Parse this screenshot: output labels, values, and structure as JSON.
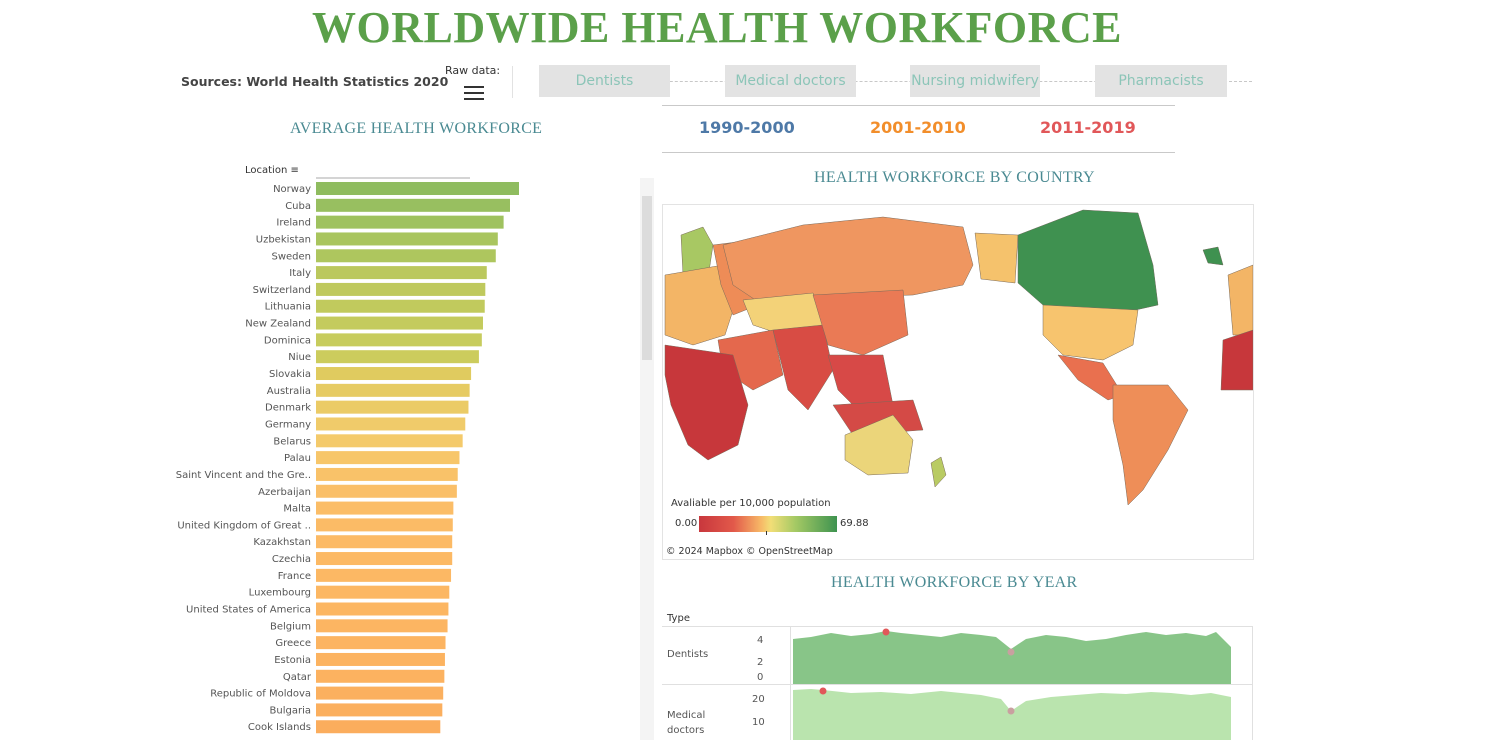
{
  "header": {
    "title": "WORLDWIDE HEALTH WORKFORCE",
    "sources": "Sources: World Health Statistics 2020",
    "raw_data_label": "Raw data:"
  },
  "tabs": [
    {
      "label": "Dentists"
    },
    {
      "label": "Medical doctors"
    },
    {
      "label": "Nursing midwifery"
    },
    {
      "label": "Pharmacists"
    }
  ],
  "periods": [
    {
      "label": "1990-2000",
      "color": "#4e79a7"
    },
    {
      "label": "2001-2010",
      "color": "#f28e2b"
    },
    {
      "label": "2011-2019",
      "color": "#e15759"
    }
  ],
  "sections": {
    "avg": "AVERAGE HEALTH WORKFORCE",
    "map": "HEALTH WORKFORCE BY COUNTRY",
    "year": "HEALTH WORKFORCE BY YEAR"
  },
  "bar_chart": {
    "column_header": "Location",
    "locations": [
      "Norway",
      "Cuba",
      "Ireland",
      "Uzbekistan",
      "Sweden",
      "Italy",
      "Switzerland",
      "Lithuania",
      "New Zealand",
      "Dominica",
      "Niue",
      "Slovakia",
      "Australia",
      "Denmark",
      "Germany",
      "Belarus",
      "Palau",
      "Saint Vincent and the Gre..",
      "Azerbaijan",
      "Malta",
      "United Kingdom of Great ..",
      "Kazakhstan",
      "Czechia",
      "France",
      "Luxembourg",
      "United States of America",
      "Belgium",
      "Greece",
      "Estonia",
      "Qatar",
      "Republic of Moldova",
      "Bulgaria",
      "Cook Islands"
    ],
    "values": [
      69.9,
      66.8,
      64.6,
      62.6,
      61.9,
      58.8,
      58.3,
      58.1,
      57.5,
      57.1,
      56.1,
      53.4,
      52.9,
      52.5,
      51.4,
      50.5,
      49.4,
      48.8,
      48.5,
      47.3,
      47.1,
      46.9,
      46.9,
      46.5,
      45.9,
      45.6,
      45.3,
      44.6,
      44.4,
      44.2,
      43.8,
      43.5,
      42.8
    ],
    "colors": [
      "#8fbc5f",
      "#98bf60",
      "#9fc25f",
      "#a9c55e",
      "#aec65e",
      "#bbc85d",
      "#bfc95d",
      "#c1ca5d",
      "#c4cb5d",
      "#c7cc5d",
      "#cccc5d",
      "#e0cb5f",
      "#e6cb63",
      "#ebcb66",
      "#f0cb6a",
      "#f4ca6b",
      "#f7c66a",
      "#f9c269",
      "#fabf68",
      "#fbbd67",
      "#fbbb66",
      "#fcba65",
      "#fcb964",
      "#fcb864",
      "#fcb763",
      "#fcb662",
      "#fcb562",
      "#fcb461",
      "#fcb360",
      "#fcb260",
      "#fbb05f",
      "#fbaf5e",
      "#fbad5d"
    ]
  },
  "map": {
    "legend_title": "Avaliable per 10,000 population",
    "legend_min": "0.00",
    "legend_max": "69.88",
    "attribution": "© 2024 Mapbox  © OpenStreetMap"
  },
  "year_chart": {
    "type_label": "Type",
    "panels": [
      {
        "label": "Dentists",
        "ticks": [
          "4",
          "2",
          "0"
        ],
        "color": "#7bbf7b"
      },
      {
        "label": "Medical doctors",
        "ticks": [
          "20",
          "10"
        ],
        "color": "#b6e3aa"
      }
    ]
  }
}
